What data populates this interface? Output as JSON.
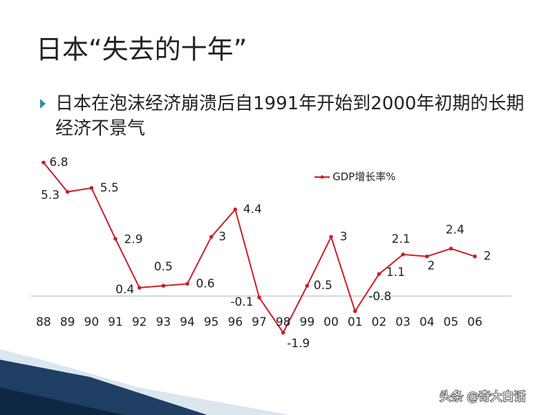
{
  "chart_data": {
    "type": "line",
    "title": "日本“失去的十年”",
    "subtitle": "日本在泡沫经济崩溃后自1991年开始到2000年初期的长期经济不景气",
    "categories": [
      "88",
      "89",
      "90",
      "91",
      "92",
      "93",
      "94",
      "95",
      "96",
      "97",
      "98",
      "99",
      "00",
      "01",
      "02",
      "03",
      "04",
      "05",
      "06"
    ],
    "series": [
      {
        "name": "GDP增长率%",
        "color": "#c8202a",
        "values": [
          6.8,
          5.3,
          5.5,
          2.9,
          0.4,
          0.5,
          0.6,
          3,
          4.4,
          -0.1,
          -1.9,
          0.5,
          3,
          -0.8,
          1.1,
          2.1,
          2,
          2.4,
          2
        ]
      }
    ]
  },
  "watermark": "头条 @奇大白话"
}
